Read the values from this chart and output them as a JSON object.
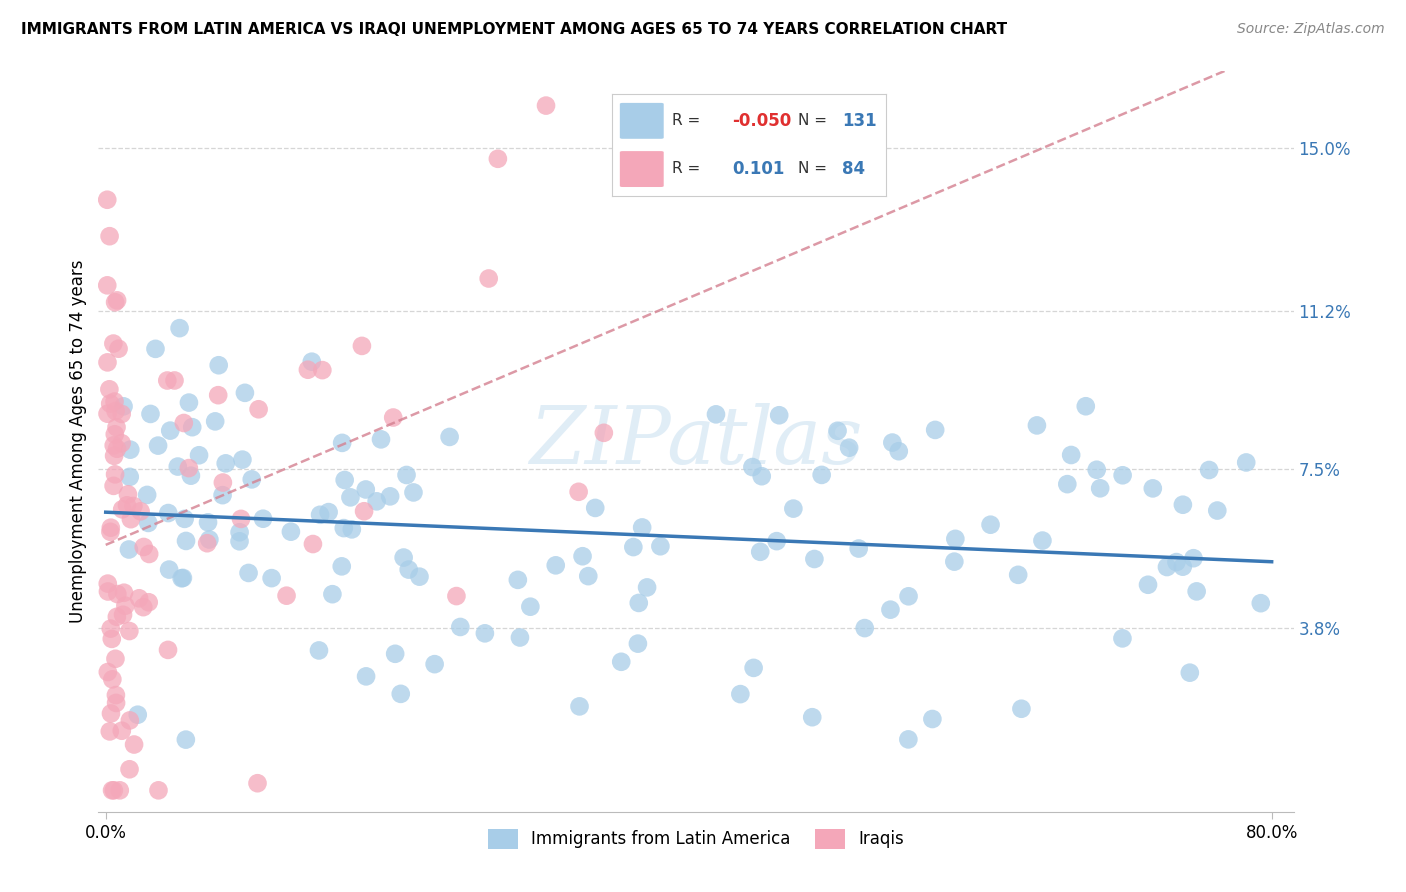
{
  "title": "IMMIGRANTS FROM LATIN AMERICA VS IRAQI UNEMPLOYMENT AMONG AGES 65 TO 74 YEARS CORRELATION CHART",
  "source": "Source: ZipAtlas.com",
  "ylabel": "Unemployment Among Ages 65 to 74 years",
  "ytick_labels": [
    "15.0%",
    "11.2%",
    "7.5%",
    "3.8%"
  ],
  "ytick_values": [
    0.15,
    0.112,
    0.075,
    0.038
  ],
  "xlim": [
    0.0,
    0.8
  ],
  "ylim": [
    0.0,
    0.165
  ],
  "legend_blue_R": "-0.050",
  "legend_blue_N": "131",
  "legend_pink_R": "0.101",
  "legend_pink_N": "84",
  "watermark": "ZIPatlas",
  "blue_color": "#a8cde8",
  "blue_line_color": "#3a78b5",
  "pink_color": "#f4a7b9",
  "pink_line_color": "#d48090",
  "title_fontsize": 11,
  "source_fontsize": 10,
  "axis_label_fontsize": 12,
  "tick_fontsize": 12,
  "right_tick_color": "#3a78b5",
  "grid_color": "#cccccc",
  "background_color": "#ffffff"
}
